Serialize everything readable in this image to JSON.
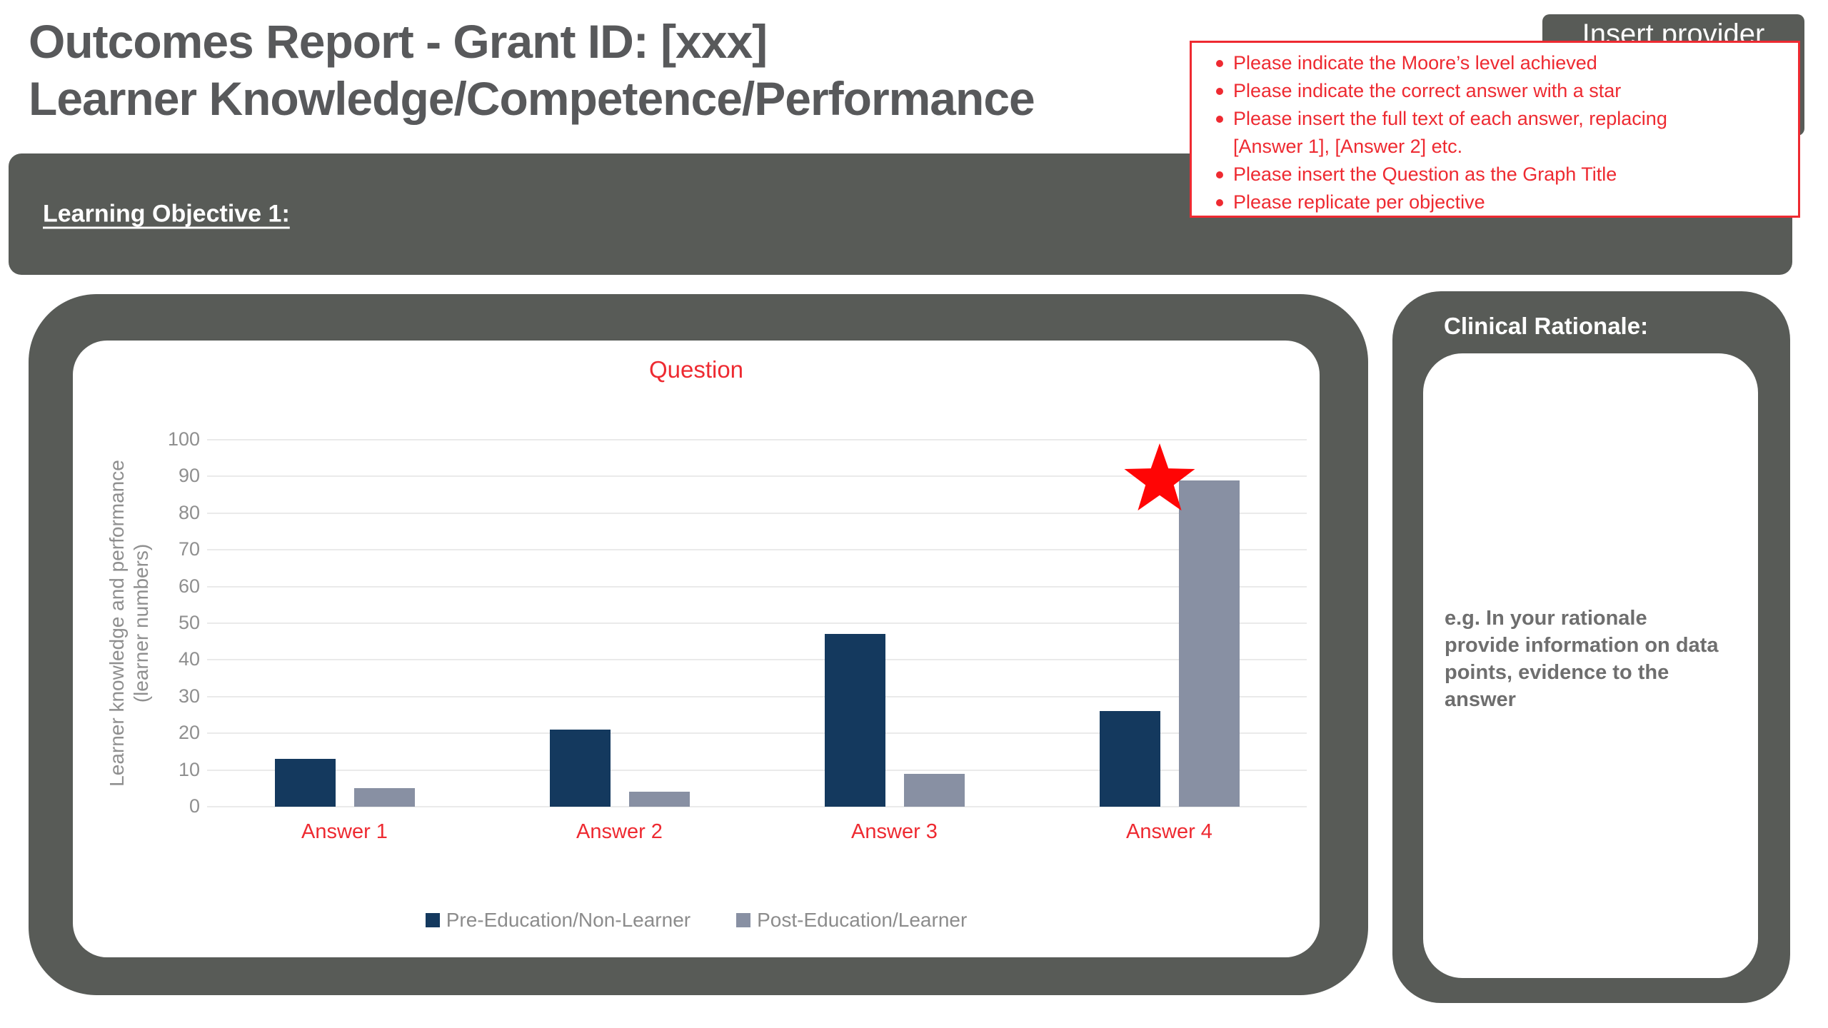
{
  "page": {
    "title_line1": "Outcomes Report - Grant ID: [xxx]",
    "title_line2": "Learner Knowledge/Competence/Performance",
    "provider_box_label": "Insert provider",
    "objective_label": "Learning Objective 1:"
  },
  "callout": {
    "items": [
      "Please indicate the Moore’s level achieved",
      "Please indicate the correct answer with a star",
      "Please insert the full text of each answer, replacing [Answer 1], [Answer 2] etc.",
      "Please insert the Question as the Graph Title",
      "Please replicate per objective"
    ]
  },
  "rationale": {
    "title": "Clinical Rationale:",
    "example_text": "e.g. In your rationale provide information on data points, evidence to the answer"
  },
  "chart_data": {
    "type": "bar",
    "title": "Question",
    "title_color": "#EE2A31",
    "categories": [
      "Answer 1",
      "Answer 2",
      "Answer 3",
      "Answer 4"
    ],
    "category_label_color": "#EE2A31",
    "series": [
      {
        "name": "Pre-Education/Non-Learner",
        "color": "#14395E",
        "values": [
          13,
          21,
          47,
          26
        ]
      },
      {
        "name": "Post-Education/Learner",
        "color": "#8890A3",
        "values": [
          5,
          4,
          9,
          89
        ]
      }
    ],
    "xlabel": "",
    "ylabel": "Learner knowledge and performance (learner numbers)",
    "ylim": [
      0,
      100
    ],
    "ytick_step": 10,
    "grid": true,
    "legend_position": "bottom",
    "star_marker": {
      "category_index": 3,
      "series_index": 1,
      "color": "#FF0505",
      "meaning": "correct answer"
    }
  },
  "colors": {
    "panel_dark": "#585B57",
    "title_text": "#58595B",
    "axis_text": "#8F8F8F",
    "gridline": "#EAEAEA",
    "accent_red": "#EE2A31"
  }
}
